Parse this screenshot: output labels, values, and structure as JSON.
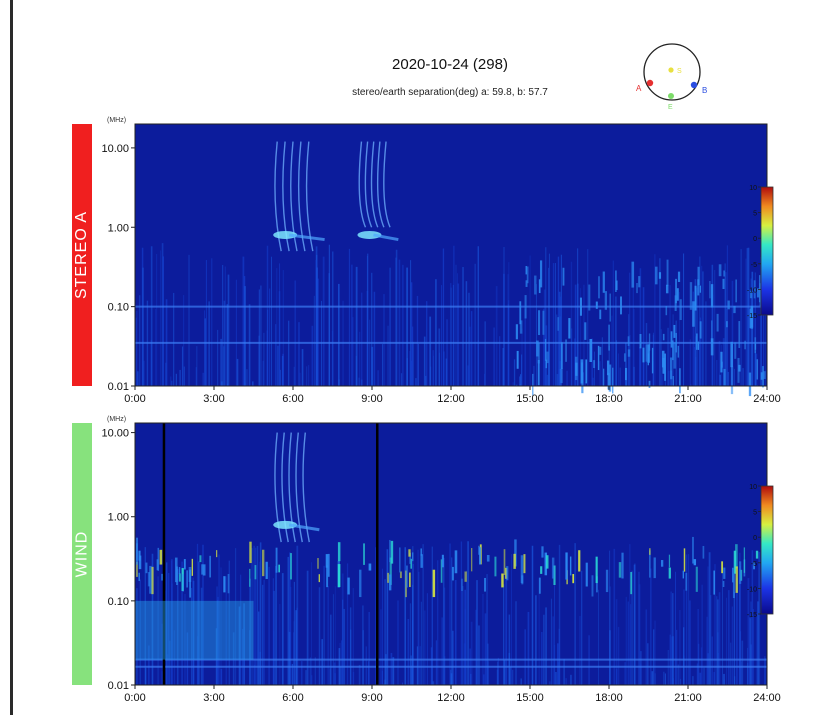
{
  "title": "2020-10-24 (298)",
  "subtitle": "stereo/earth separation(deg) a:  59.8, b:  57.7",
  "orbit": {
    "labels": [
      "A",
      "B",
      "E",
      "S"
    ],
    "colors": {
      "A": "#e53030",
      "B": "#2a4de0",
      "E": "#7ddc6a",
      "S": "#e8e040"
    }
  },
  "chart_data": [
    {
      "type": "heatmap",
      "panel": "STEREO A",
      "band_color": "#f01f1f",
      "yunit": "(MHz)",
      "yscale": "log",
      "ylim": [
        0.01,
        20
      ],
      "yticks": [
        "10.00",
        "1.00",
        "0.10",
        "0.01"
      ],
      "xticks": [
        "0:00",
        "3:00",
        "6:00",
        "9:00",
        "12:00",
        "15:00",
        "18:00",
        "21:00",
        "24:00"
      ],
      "xlim_hours": [
        0,
        24
      ],
      "colorbar": {
        "ticks": [
          "10",
          "5",
          "0",
          "-5",
          "-10",
          "-15"
        ],
        "range": [
          -15,
          10
        ]
      },
      "features": [
        {
          "type": "burst",
          "start_h": 5.4,
          "end_h": 7.2,
          "freq_high": 12,
          "freq_low": 0.5
        },
        {
          "type": "burst",
          "start_h": 8.6,
          "end_h": 10.0,
          "freq_high": 12,
          "freq_low": 1.0
        },
        {
          "type": "noise_band",
          "start_h": 14.5,
          "end_h": 24,
          "freq_high": 0.3,
          "freq_low": 0.01
        }
      ]
    },
    {
      "type": "heatmap",
      "panel": "WIND",
      "band_color": "#87e27d",
      "yunit": "(MHz)",
      "yscale": "log",
      "ylim": [
        0.01,
        13
      ],
      "yticks": [
        "10.00",
        "1.00",
        "0.10",
        "0.01"
      ],
      "xticks": [
        "0:00",
        "3:00",
        "6:00",
        "9:00",
        "12:00",
        "15:00",
        "18:00",
        "21:00",
        "24:00"
      ],
      "xlim_hours": [
        0,
        24
      ],
      "colorbar": {
        "ticks": [
          "10",
          "5",
          "0",
          "-5",
          "-10",
          "-15"
        ],
        "range": [
          -15,
          10
        ]
      },
      "features": [
        {
          "type": "burst",
          "start_h": 5.4,
          "end_h": 7.0,
          "freq_high": 10,
          "freq_low": 0.5
        },
        {
          "type": "data_gap",
          "at_h": 1.1
        },
        {
          "type": "data_gap",
          "at_h": 9.2
        },
        {
          "type": "noise_band",
          "start_h": 0,
          "end_h": 24,
          "freq_high": 0.4,
          "freq_low": 0.15
        }
      ]
    }
  ]
}
